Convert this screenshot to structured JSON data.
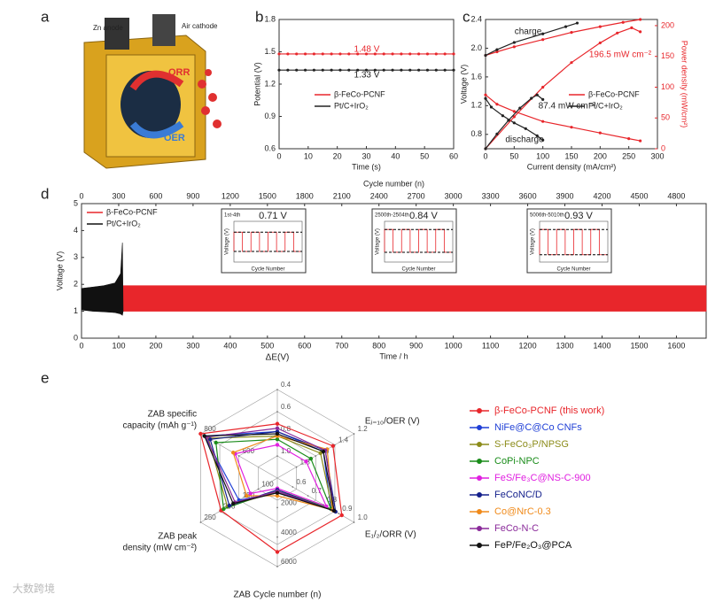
{
  "panels": [
    "a",
    "b",
    "c",
    "d",
    "e"
  ],
  "illustration": {
    "labels": [
      "Zn anode",
      "Air cathode",
      "ORR",
      "OER"
    ]
  },
  "watermark": "大数跨境",
  "chart_data": [
    {
      "type": "line",
      "xlabel": "Time (s)",
      "ylabel": "Potential (V)",
      "xlim": [
        0,
        60
      ],
      "xticks": [
        0,
        10,
        20,
        30,
        40,
        50,
        60
      ],
      "ylim": [
        0.6,
        1.8
      ],
      "yticks": [
        0.6,
        0.9,
        1.2,
        1.5,
        1.8
      ],
      "legend": "center left",
      "annotations": [
        "1.48 V",
        "1.33 V"
      ],
      "x": [
        0,
        3,
        6,
        9,
        12,
        15,
        18,
        21,
        24,
        27,
        30,
        33,
        36,
        39,
        42,
        45,
        48,
        51,
        54,
        57,
        60
      ],
      "series": [
        {
          "name": "β-FeCo-PCNF",
          "color": "#e8262b",
          "values": [
            1.48,
            1.48,
            1.48,
            1.48,
            1.48,
            1.48,
            1.48,
            1.48,
            1.48,
            1.48,
            1.48,
            1.48,
            1.48,
            1.48,
            1.48,
            1.48,
            1.48,
            1.48,
            1.48,
            1.48,
            1.48
          ]
        },
        {
          "name": "Pt/C+IrO₂",
          "color": "#222222",
          "values": [
            1.33,
            1.33,
            1.33,
            1.33,
            1.33,
            1.33,
            1.33,
            1.33,
            1.33,
            1.33,
            1.33,
            1.33,
            1.33,
            1.33,
            1.33,
            1.33,
            1.33,
            1.33,
            1.33,
            1.33,
            1.33
          ]
        }
      ]
    },
    {
      "type": "line",
      "xlabel": "Current density  (mA/cm²)",
      "ylabel": "Voltage (V)",
      "y2label": "Power density (mW/cm²)",
      "xlim": [
        0,
        300
      ],
      "xticks": [
        0,
        50,
        100,
        150,
        200,
        250,
        300
      ],
      "ylim": [
        0.6,
        2.4
      ],
      "yticks": [
        0.8,
        1.2,
        1.6,
        {
          "value": 2,
          "label": "2.0"
        },
        2.4
      ],
      "y2lim": [
        0,
        210
      ],
      "y2ticks": [
        0,
        50,
        100,
        150,
        200
      ],
      "legend": "center right",
      "annotations": [
        "charge",
        "discharge",
        "196.5 mW cm⁻²",
        "87.4 mW cm⁻²"
      ],
      "series": [
        {
          "name": "β-FeCo-PCNF",
          "color": "#e8262b",
          "x": [
            0,
            20,
            50,
            100,
            150,
            200,
            250,
            270
          ],
          "values": [
            1.35,
            1.22,
            1.12,
            0.98,
            0.9,
            0.82,
            0.74,
            0.71
          ]
        },
        {
          "name": "Pt/C+IrO₂",
          "color": "#222222",
          "x": [
            0,
            10,
            30,
            50,
            70,
            90,
            100
          ],
          "values": [
            1.3,
            1.18,
            1.06,
            0.96,
            0.88,
            0.78,
            0.72
          ]
        },
        {
          "color": "#e8262b",
          "x": [
            0,
            20,
            50,
            100,
            150,
            200,
            240,
            270
          ],
          "values": [
            1.9,
            1.95,
            2.02,
            2.12,
            2.22,
            2.3,
            2.36,
            2.4
          ]
        },
        {
          "color": "#222222",
          "x": [
            0,
            20,
            50,
            100,
            140,
            160
          ],
          "values": [
            1.9,
            1.98,
            2.08,
            2.2,
            2.3,
            2.35
          ]
        },
        {
          "color": "#e8262b",
          "axis": "y2",
          "x": [
            0,
            50,
            100,
            150,
            200,
            230,
            255,
            270
          ],
          "values": [
            0,
            52,
            100,
            140,
            172,
            188,
            196.5,
            190
          ]
        },
        {
          "color": "#222222",
          "axis": "y2",
          "x": [
            0,
            20,
            40,
            60,
            80,
            90,
            100
          ],
          "values": [
            0,
            24,
            46,
            66,
            82,
            87.4,
            80
          ]
        }
      ]
    },
    {
      "type": "band",
      "xlabel": "Time / h",
      "ylabel": "Voltage (V)",
      "x2label": "Cycle number (n)",
      "xlim": [
        0,
        1680
      ],
      "xticks": [
        0,
        100,
        200,
        300,
        400,
        500,
        600,
        700,
        800,
        900,
        1000,
        1100,
        1200,
        1300,
        1400,
        1500,
        1600
      ],
      "x2lim": [
        0,
        5040
      ],
      "x2ticks": [
        0,
        300,
        600,
        900,
        1200,
        1500,
        1800,
        2100,
        2400,
        2700,
        3000,
        3300,
        3600,
        3900,
        4200,
        4500,
        4800
      ],
      "ylim": [
        0,
        5
      ],
      "yticks": [
        0,
        1,
        2,
        3,
        4,
        5
      ],
      "legend": "upper left",
      "series": [
        {
          "name": "β-FeCo-PCNF",
          "color": "#e8262b",
          "x": [
            110,
            1680
          ],
          "upper": [
            1.95,
            1.95
          ],
          "lower": [
            1.0,
            1.0
          ]
        },
        {
          "name": "Pt/C+IrO₂",
          "color": "#111111",
          "x": [
            0,
            30,
            60,
            90,
            105,
            110,
            112
          ],
          "upper": [
            1.85,
            1.9,
            1.95,
            2.05,
            2.4,
            3.55,
            1.0
          ],
          "lower": [
            1.05,
            1.0,
            0.98,
            0.95,
            0.9,
            0.85,
            1.0
          ]
        }
      ],
      "insets": [
        {
          "title": "1st-4th",
          "gap_label": "0.71 V",
          "xlabel": "Cycle Number",
          "ylabel": "Voltage (V)",
          "high": 1.9,
          "low": 1.19
        },
        {
          "title": "2500th-2504th",
          "gap_label": "0.84 V",
          "xlabel": "Cycle Number",
          "ylabel": "Voltage (V)",
          "high": 2.0,
          "low": 1.16
        },
        {
          "title": "5006th-5010th",
          "gap_label": "0.93 V",
          "xlabel": "Cycle Number",
          "ylabel": "Voltage (V)",
          "high": 2.0,
          "low": 1.07
        }
      ]
    },
    {
      "type": "radar",
      "axes": [
        {
          "label": [
            "ΔE(V)"
          ],
          "range": [
            1.2,
            0.4
          ],
          "ticks": [
            0.4,
            0.6,
            0.8,
            {
              "value": 1,
              "label": "1.0"
            }
          ]
        },
        {
          "label": [
            "Eⱼ₌₁₀/OER (V)"
          ],
          "range": [
            2.0,
            1.2
          ],
          "ticks": [
            1.2,
            1.4,
            1.6,
            1.8
          ]
        },
        {
          "label": [
            "E₁/₂/ORR (V)"
          ],
          "range": [
            0.5,
            1.0
          ],
          "ticks": [
            {
              "value": 1,
              "label": "1.0"
            },
            0.9,
            0.8,
            0.7,
            0.6
          ]
        },
        {
          "label": [
            "ZAB Cycle number (n)"
          ],
          "range": [
            0,
            6000
          ],
          "ticks": [
            6000,
            4000,
            2000
          ]
        },
        {
          "label": [
            "ZAB peak",
            "density (mW cm⁻²)"
          ],
          "range": [
            50,
            250
          ],
          "ticks": [
            250,
            200,
            150,
            100
          ]
        },
        {
          "label": [
            "ZAB specific",
            "capacity (mAh g⁻¹)"
          ],
          "range": [
            400,
            800
          ],
          "ticks": [
            800,
            600
          ]
        }
      ],
      "series": [
        {
          "name": "β-FeCo-PCNF (this work)",
          "color": "#e8262b",
          "values": [
            0.71,
            1.42,
            0.92,
            5010,
            196.5,
            800
          ]
        },
        {
          "name": "NiFe@C@Co CNFs",
          "color": "#1f3fd6",
          "values": [
            0.78,
            1.52,
            0.85,
            1000,
            150,
            780
          ]
        },
        {
          "name": "S-FeCo₃P/NPSG",
          "color": "#8c8c1a",
          "values": [
            0.82,
            1.55,
            0.86,
            900,
            180,
            760
          ]
        },
        {
          "name": "CoPi-NPC",
          "color": "#1a8c1a",
          "values": [
            0.85,
            1.65,
            0.85,
            800,
            190,
            720
          ]
        },
        {
          "name": "FeS/Fe₃C@NS-C-900",
          "color": "#e020e0",
          "values": [
            0.9,
            1.7,
            0.82,
            700,
            120,
            620
          ]
        },
        {
          "name": "FeCoNC/D",
          "color": "#14208c",
          "values": [
            0.78,
            1.5,
            0.88,
            800,
            175,
            750
          ]
        },
        {
          "name": "Co@NrC-0.3",
          "color": "#f08a1a",
          "values": [
            0.82,
            1.48,
            0.86,
            1200,
            130,
            630
          ]
        },
        {
          "name": "FeCo-N-C",
          "color": "#8a2a9a",
          "values": [
            0.75,
            1.5,
            0.87,
            900,
            160,
            770
          ]
        },
        {
          "name": "FeP/Fe₂O₃@PCA",
          "color": "#111111",
          "values": [
            0.8,
            1.52,
            0.87,
            1000,
            165,
            780
          ]
        }
      ]
    }
  ]
}
